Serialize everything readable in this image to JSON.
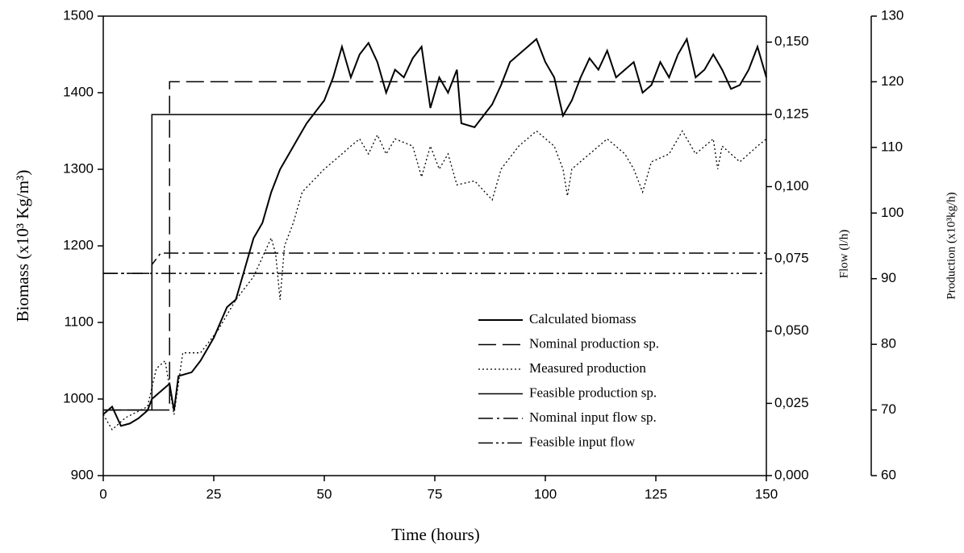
{
  "chart_data": {
    "type": "line",
    "x_label": "Time (hours)",
    "y_label": "Biomass  (x10³ Kg/m³)",
    "y2_label": "Flow (l/h)",
    "y3_label": "Production (x10³kg/h)",
    "xlim": [
      0,
      150
    ],
    "xticks": [
      0,
      25,
      50,
      75,
      100,
      125,
      150
    ],
    "ylim": [
      900,
      1500
    ],
    "yticks": [
      900,
      1000,
      1100,
      1200,
      1300,
      1400,
      1500
    ],
    "y2lim": [
      0,
      0.159
    ],
    "y2ticks": [
      {
        "value": 0,
        "label": "0,000"
      },
      {
        "value": 0.025,
        "label": "0,025"
      },
      {
        "value": 0.05,
        "label": "0,050"
      },
      {
        "value": 0.075,
        "label": "0,075"
      },
      {
        "value": 0.1,
        "label": "0,100"
      },
      {
        "value": 0.125,
        "label": "0,125"
      },
      {
        "value": 0.15,
        "label": "0,150"
      }
    ],
    "y3lim": [
      60,
      130
    ],
    "y3ticks": [
      60,
      70,
      80,
      90,
      100,
      110,
      120,
      130
    ],
    "series": [
      {
        "name": "Calculated biomass",
        "color": "#000000",
        "style": "solid",
        "width": 2,
        "axis": "y",
        "x": [
          0,
          2,
          4,
          6,
          8,
          10,
          11,
          13,
          15,
          16,
          17,
          20,
          22,
          25,
          28,
          30,
          32,
          34,
          36,
          38,
          40,
          42,
          44,
          46,
          48,
          50,
          52,
          54,
          56,
          58,
          60,
          62,
          64,
          66,
          68,
          70,
          72,
          74,
          76,
          78,
          80,
          81,
          84,
          86,
          88,
          90,
          92,
          94,
          96,
          98,
          100,
          102,
          104,
          106,
          108,
          110,
          112,
          114,
          116,
          118,
          120,
          122,
          124,
          126,
          128,
          130,
          132,
          134,
          136,
          138,
          140,
          142,
          144,
          146,
          148,
          150
        ],
        "values": [
          980,
          990,
          965,
          968,
          975,
          985,
          1000,
          1010,
          1020,
          985,
          1030,
          1035,
          1050,
          1080,
          1120,
          1130,
          1170,
          1210,
          1230,
          1270,
          1300,
          1320,
          1340,
          1360,
          1375,
          1390,
          1420,
          1460,
          1420,
          1450,
          1465,
          1440,
          1400,
          1430,
          1420,
          1445,
          1460,
          1380,
          1420,
          1400,
          1430,
          1360,
          1355,
          1370,
          1385,
          1410,
          1440,
          1450,
          1460,
          1470,
          1440,
          1420,
          1370,
          1390,
          1420,
          1445,
          1430,
          1455,
          1420,
          1430,
          1440,
          1400,
          1410,
          1440,
          1420,
          1450,
          1470,
          1420,
          1430,
          1450,
          1430,
          1405,
          1410,
          1430,
          1460,
          1420
        ]
      },
      {
        "name": "Nominal production sp.",
        "color": "#000000",
        "style": "dashed",
        "width": 1.5,
        "axis": "y3",
        "x": [
          0,
          15,
          15,
          150
        ],
        "values": [
          70,
          70,
          120,
          120
        ]
      },
      {
        "name": "Measured production",
        "color": "#000000",
        "style": "dotted",
        "width": 1.3,
        "axis": "y3",
        "x": [
          0,
          2,
          5,
          10,
          12,
          14,
          16,
          18,
          22,
          26,
          30,
          34,
          38,
          39,
          40,
          41,
          43,
          45,
          50,
          54,
          56,
          58,
          60,
          62,
          64,
          66,
          70,
          72,
          74,
          76,
          78,
          80,
          84,
          88,
          90,
          94,
          98,
          102,
          104,
          105,
          106,
          110,
          114,
          118,
          120,
          122,
          124,
          128,
          131,
          134,
          138,
          139,
          140,
          144,
          148,
          150
        ],
        "values": [
          69.3,
          67.0,
          68.8,
          70.5,
          76.3,
          77.5,
          69.3,
          78.7,
          78.7,
          82.2,
          86.8,
          90.3,
          96.2,
          93.8,
          86.8,
          95.0,
          98.5,
          103.2,
          106.7,
          109.0,
          110.2,
          111.3,
          109.0,
          111.9,
          109.0,
          111.3,
          110.2,
          105.5,
          110.2,
          106.7,
          109.0,
          104.3,
          104.9,
          102.0,
          106.7,
          110.2,
          112.5,
          110.2,
          106.7,
          102.6,
          106.7,
          109.0,
          111.3,
          109.0,
          106.7,
          103.2,
          107.8,
          109.0,
          112.5,
          109.0,
          111.3,
          106.7,
          110.2,
          107.8,
          110.2,
          111.3
        ]
      },
      {
        "name": "Feasible production sp.",
        "color": "#000000",
        "style": "solid",
        "width": 1.5,
        "axis": "y3",
        "x": [
          0,
          11,
          11,
          150
        ],
        "values": [
          70,
          70,
          115,
          115
        ]
      },
      {
        "name": "Nominal input flow sp.",
        "color": "#000000",
        "style": "dashdot",
        "width": 1.5,
        "axis": "y2",
        "x": [
          0,
          11,
          11,
          13,
          150
        ],
        "values": [
          0.07,
          0.07,
          0.073,
          0.077,
          0.077
        ]
      },
      {
        "name": "Feasible input flow",
        "color": "#000000",
        "style": "dashdotdot",
        "width": 1.5,
        "axis": "y2",
        "x": [
          0,
          150
        ],
        "values": [
          0.07,
          0.07
        ]
      }
    ]
  }
}
